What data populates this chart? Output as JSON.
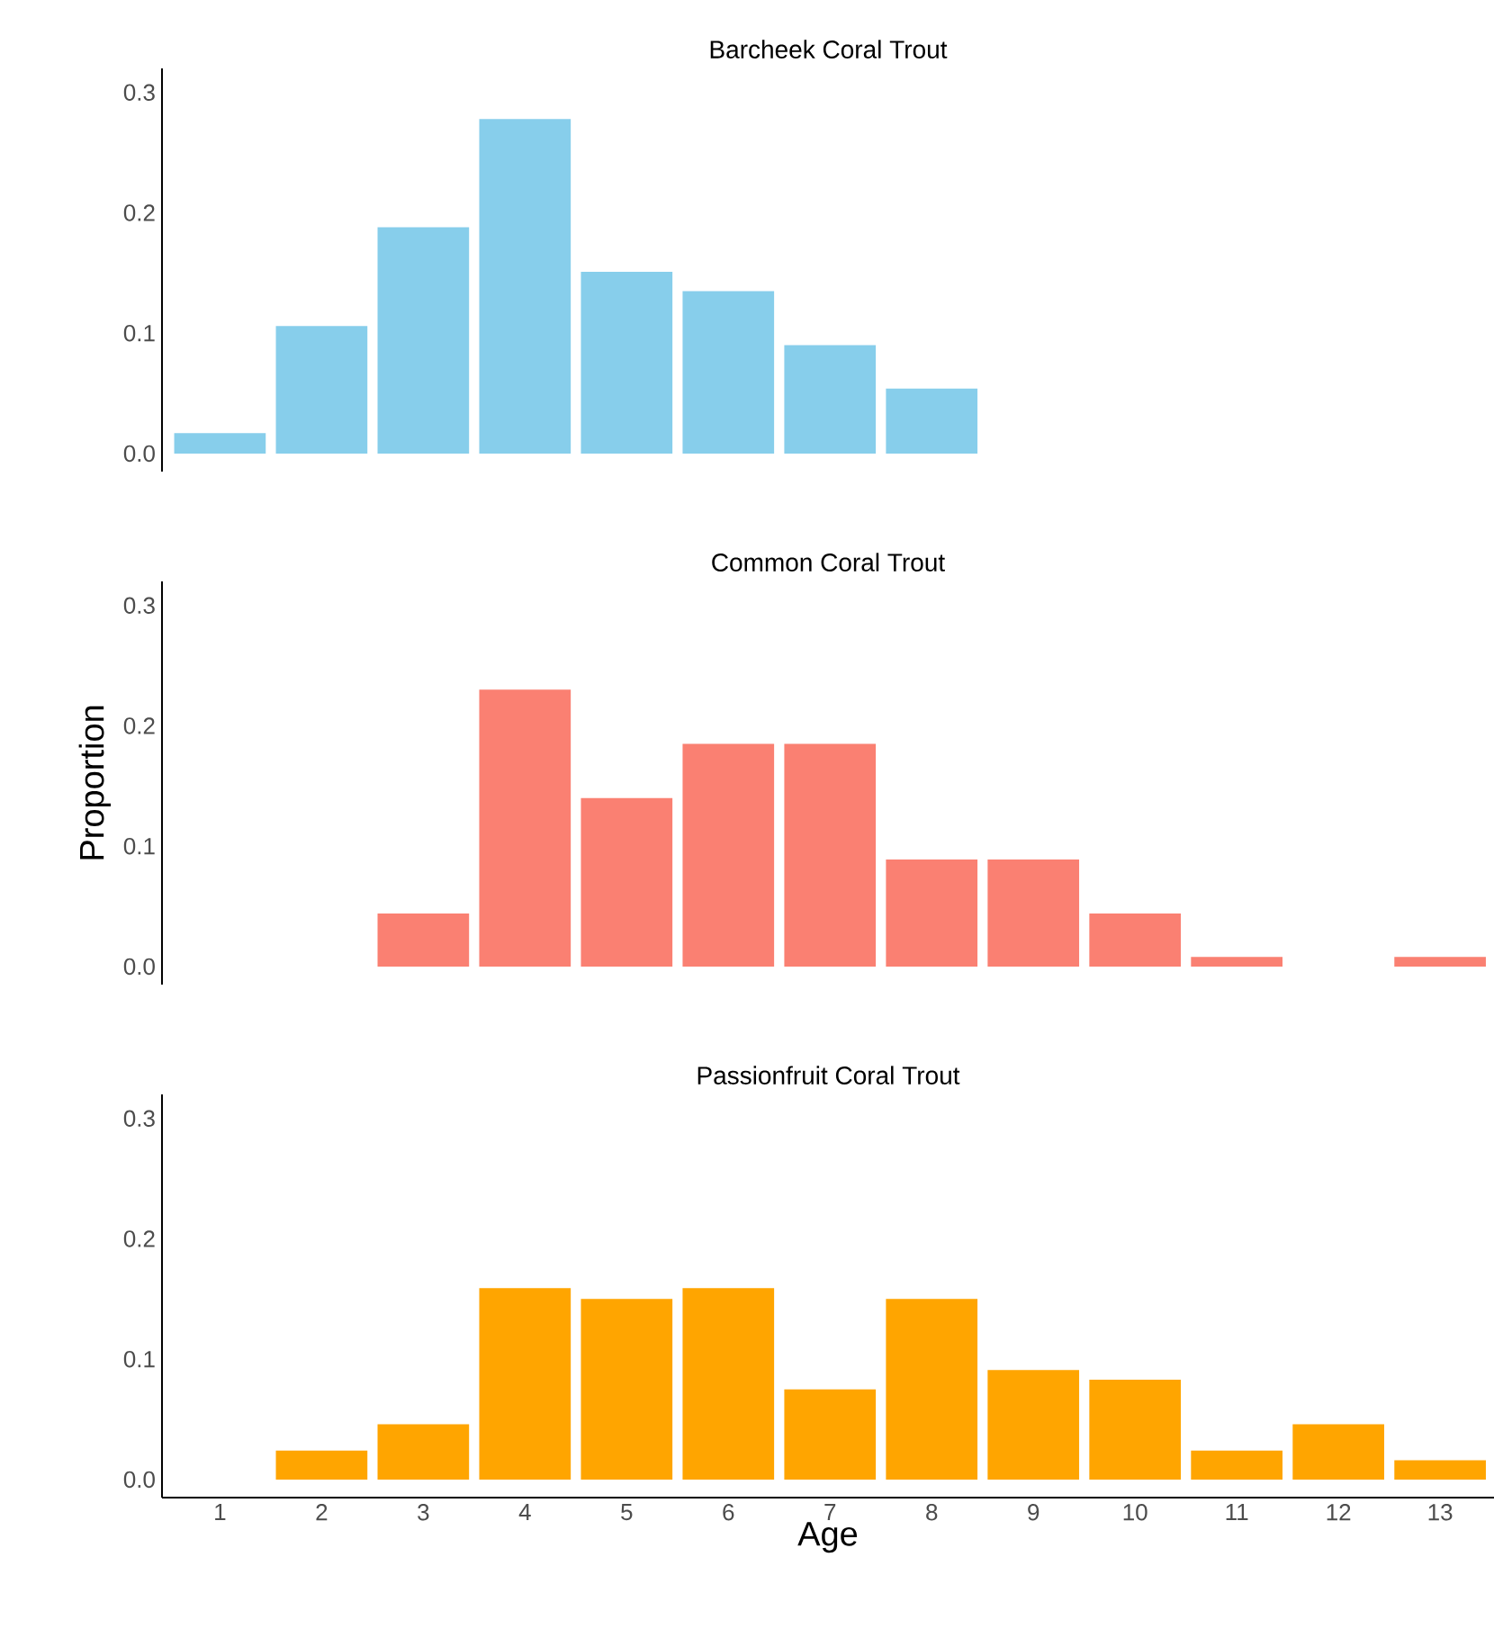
{
  "chart_data": [
    {
      "type": "bar",
      "title": "Barcheek Coral Trout",
      "categories": [
        "1",
        "2",
        "3",
        "4",
        "5",
        "6",
        "7",
        "8",
        "9",
        "10",
        "11",
        "12",
        "13"
      ],
      "color": "#87ceeb",
      "values": [
        0.017,
        0.106,
        0.188,
        0.278,
        0.151,
        0.135,
        0.09,
        0.054,
        null,
        null,
        null,
        null,
        null
      ],
      "ylim": [
        -0.015,
        0.32
      ],
      "yticks": [
        {
          "value": 0,
          "label": "0.0"
        },
        {
          "value": 0.1,
          "label": "0.1"
        },
        {
          "value": 0.2,
          "label": "0.2"
        },
        {
          "value": 0.3,
          "label": "0.3"
        }
      ],
      "tick_labels": "y"
    },
    {
      "type": "bar",
      "title": "Common Coral Trout",
      "ylabel": "Proportion",
      "categories": [
        "1",
        "2",
        "3",
        "4",
        "5",
        "6",
        "7",
        "8",
        "9",
        "10",
        "11",
        "12",
        "13"
      ],
      "color": "#fa8072",
      "values": [
        null,
        null,
        0.044,
        0.23,
        0.14,
        0.185,
        0.185,
        0.089,
        0.089,
        0.044,
        0.008,
        null,
        0.008
      ],
      "ylim": [
        -0.015,
        0.32
      ],
      "yticks": [
        {
          "value": 0,
          "label": "0.0"
        },
        {
          "value": 0.1,
          "label": "0.1"
        },
        {
          "value": 0.2,
          "label": "0.2"
        },
        {
          "value": 0.3,
          "label": "0.3"
        }
      ],
      "tick_labels": "y"
    },
    {
      "type": "bar",
      "title": "Passionfruit Coral Trout",
      "xlabel": "Age",
      "categories": [
        "1",
        "2",
        "3",
        "4",
        "5",
        "6",
        "7",
        "8",
        "9",
        "10",
        "11",
        "12",
        "13"
      ],
      "color": "#ffa500",
      "values": [
        null,
        0.024,
        0.046,
        0.159,
        0.15,
        0.159,
        0.075,
        0.15,
        0.091,
        0.083,
        0.024,
        0.046,
        0.016
      ],
      "ylim": [
        -0.015,
        0.32
      ],
      "yticks": [
        {
          "value": 0,
          "label": "0.0"
        },
        {
          "value": 0.1,
          "label": "0.1"
        },
        {
          "value": 0.2,
          "label": "0.2"
        },
        {
          "value": 0.3,
          "label": "0.3"
        }
      ]
    }
  ]
}
